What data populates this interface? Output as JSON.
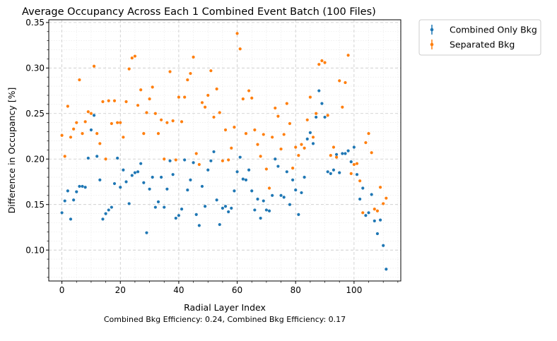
{
  "chart_data": {
    "type": "scatter",
    "title": "Average Occupancy Across Each 1 Combined Event Batch (100 Files)",
    "xlabel": "Radial Layer Index",
    "ylabel": "Difference in Occupancy [%]",
    "footnote": "Combined Bkg Efficiency: 0.24, Combined Bkg Efficiency: 0.17",
    "xlim": [
      -4.5,
      116
    ],
    "ylim": [
      0.066,
      0.353
    ],
    "x_ticks": [
      0,
      20,
      40,
      60,
      80,
      100
    ],
    "x_tick_labels": [
      "0",
      "20",
      "40",
      "60",
      "80",
      "100"
    ],
    "y_ticks": [
      0.1,
      0.15,
      0.2,
      0.25,
      0.3,
      0.35
    ],
    "y_tick_labels": [
      "0.10",
      "0.15",
      "0.20",
      "0.25",
      "0.30",
      "0.35"
    ],
    "grid": true,
    "legend_position": "outside-top-right",
    "series": [
      {
        "name": "Combined Only Bkg",
        "color": "#1f77b4",
        "values": [
          0.141,
          0.154,
          0.165,
          0.134,
          0.155,
          0.164,
          0.17,
          0.17,
          0.169,
          0.201,
          0.232,
          0.248,
          0.203,
          0.177,
          0.134,
          0.14,
          0.144,
          0.147,
          0.173,
          0.201,
          0.169,
          0.188,
          0.175,
          0.151,
          0.182,
          0.185,
          0.186,
          0.195,
          0.174,
          0.119,
          0.167,
          0.18,
          0.147,
          0.153,
          0.18,
          0.147,
          0.167,
          0.198,
          0.183,
          0.135,
          0.138,
          0.145,
          0.199,
          0.166,
          0.177,
          0.196,
          0.139,
          0.127,
          0.17,
          0.148,
          0.188,
          0.198,
          0.208,
          0.155,
          0.128,
          0.146,
          0.148,
          0.142,
          0.146,
          0.165,
          0.186,
          0.202,
          0.178,
          0.177,
          0.188,
          0.165,
          0.144,
          0.156,
          0.135,
          0.154,
          0.144,
          0.143,
          0.16,
          0.2,
          0.192,
          0.16,
          0.158,
          0.186,
          0.15,
          0.177,
          0.166,
          0.139,
          0.163,
          0.18,
          0.222,
          0.229,
          0.217,
          0.246,
          0.275,
          0.261,
          0.246,
          0.186,
          0.184,
          0.188,
          0.205,
          0.185,
          0.206,
          0.206,
          0.209,
          0.197,
          0.213,
          0.183,
          0.156,
          0.168,
          0.138,
          0.141,
          0.161,
          0.132,
          0.118,
          0.133,
          0.105,
          0.079
        ]
      },
      {
        "name": "Separated Bkg",
        "color": "#ff7f0e",
        "values": [
          0.226,
          0.203,
          0.258,
          0.224,
          0.233,
          0.24,
          0.287,
          0.228,
          0.241,
          0.252,
          0.25,
          0.302,
          0.228,
          0.217,
          0.263,
          0.2,
          0.264,
          0.239,
          0.264,
          0.24,
          0.24,
          0.224,
          0.263,
          0.299,
          0.311,
          0.313,
          0.259,
          0.276,
          0.228,
          0.251,
          0.266,
          0.279,
          0.25,
          0.228,
          0.243,
          0.2,
          0.24,
          0.296,
          0.242,
          0.199,
          0.268,
          0.241,
          0.268,
          0.287,
          0.294,
          0.312,
          0.206,
          0.194,
          0.262,
          0.257,
          0.27,
          0.297,
          0.246,
          0.277,
          0.251,
          0.198,
          0.232,
          0.199,
          0.212,
          0.235,
          0.338,
          0.321,
          0.266,
          0.228,
          0.275,
          0.267,
          0.232,
          0.216,
          0.203,
          0.227,
          0.189,
          0.168,
          0.224,
          0.256,
          0.247,
          0.211,
          0.227,
          0.261,
          0.239,
          0.19,
          0.213,
          0.204,
          0.216,
          0.212,
          0.243,
          0.268,
          0.224,
          0.25,
          0.304,
          0.308,
          0.306,
          0.248,
          0.204,
          0.213,
          0.202,
          0.286,
          0.257,
          0.284,
          0.314,
          0.184,
          0.194,
          0.195,
          0.176,
          0.141,
          0.218,
          0.228,
          0.207,
          0.145,
          0.143,
          0.169,
          0.151,
          0.157
        ]
      }
    ]
  }
}
